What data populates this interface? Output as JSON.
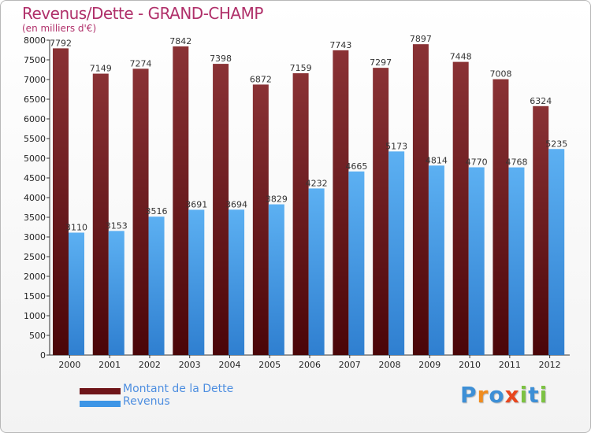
{
  "header": {
    "title": "Revenus/Dette - GRAND-CHAMP",
    "unit": "(en milliers d'€)"
  },
  "legend": [
    {
      "label": "Montant de la Dette",
      "color": "#6e1418"
    },
    {
      "label": "Revenus",
      "color": "#3d95e6"
    }
  ],
  "logo": {
    "text": "Proxiti",
    "letters": [
      {
        "ch": "P",
        "color": "#3d8fd6"
      },
      {
        "ch": "r",
        "color": "#f08c1e"
      },
      {
        "ch": "o",
        "color": "#3d8fd6"
      },
      {
        "ch": "x",
        "color": "#e8461e"
      },
      {
        "ch": "i",
        "color": "#7cc242"
      },
      {
        "ch": "t",
        "color": "#3d8fd6"
      },
      {
        "ch": "i",
        "color": "#7cc242"
      }
    ]
  },
  "chart_data": {
    "type": "bar",
    "title": "Revenus/Dette - GRAND-CHAMP",
    "ylabel": "(en milliers d'€)",
    "xlabel": "",
    "categories": [
      "2000",
      "2001",
      "2002",
      "2003",
      "2004",
      "2005",
      "2006",
      "2007",
      "2008",
      "2009",
      "2010",
      "2011",
      "2012"
    ],
    "series": [
      {
        "name": "Montant de la Dette",
        "color": "#6e1418",
        "values": [
          7792,
          7149,
          7274,
          7842,
          7398,
          6872,
          7159,
          7743,
          7297,
          7897,
          7448,
          7008,
          6324
        ]
      },
      {
        "name": "Revenus",
        "color": "#3d95e6",
        "values": [
          3110,
          3153,
          3516,
          3691,
          3694,
          3829,
          4232,
          4665,
          5173,
          4814,
          4770,
          4768,
          5235
        ]
      }
    ],
    "ylim": [
      0,
      8000
    ],
    "yticks": [
      0,
      500,
      1000,
      1500,
      2000,
      2500,
      3000,
      3500,
      4000,
      4500,
      5000,
      5500,
      6000,
      6500,
      7000,
      7500,
      8000
    ],
    "grid": false,
    "legend_position": "bottom-left"
  }
}
